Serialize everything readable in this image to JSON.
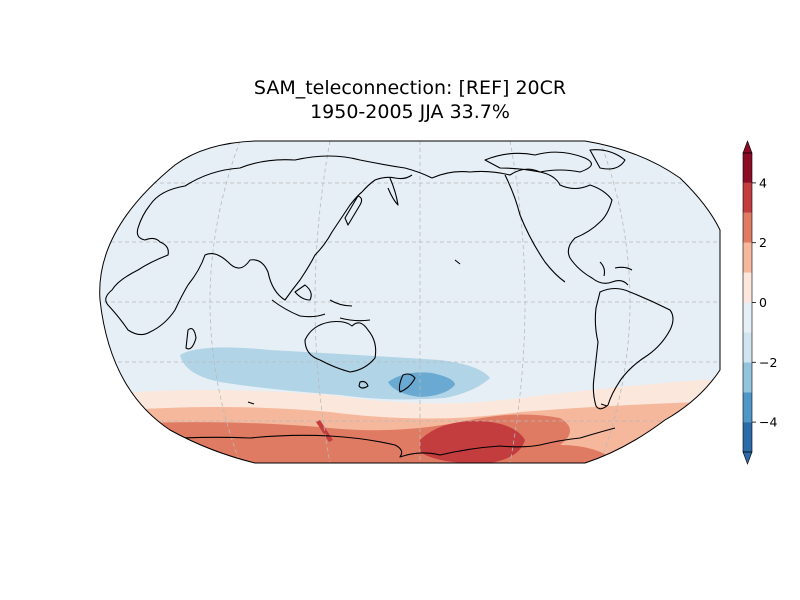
{
  "title": {
    "line1": "SAM_teleconnection: [REF] 20CR",
    "line2": "1950-2005 JJA 33.7%"
  },
  "colorbar": {
    "ticks": [
      {
        "value": 4,
        "label": "4"
      },
      {
        "value": 2,
        "label": "2"
      },
      {
        "value": 0,
        "label": "0"
      },
      {
        "value": -2,
        "label": "−2"
      },
      {
        "value": -4,
        "label": "−4"
      }
    ],
    "levels": [
      -5,
      -4,
      -3,
      -2,
      -1,
      0,
      1,
      2,
      3,
      4,
      5
    ],
    "colors": [
      "#2b6ba7",
      "#4f97c6",
      "#93c4de",
      "#cfe4ef",
      "#e6eff6",
      "#fbe7dc",
      "#f5b89c",
      "#e07b63",
      "#c33c3e",
      "#8c0c25"
    ],
    "extend": "both"
  },
  "map": {
    "projection": "Robinson",
    "central_longitude": 180,
    "gridlines": true,
    "coastlines": true
  },
  "colors": {
    "background_field": "#e6eff6",
    "coastline": "#000000",
    "gridline": "#bbbbbb"
  }
}
